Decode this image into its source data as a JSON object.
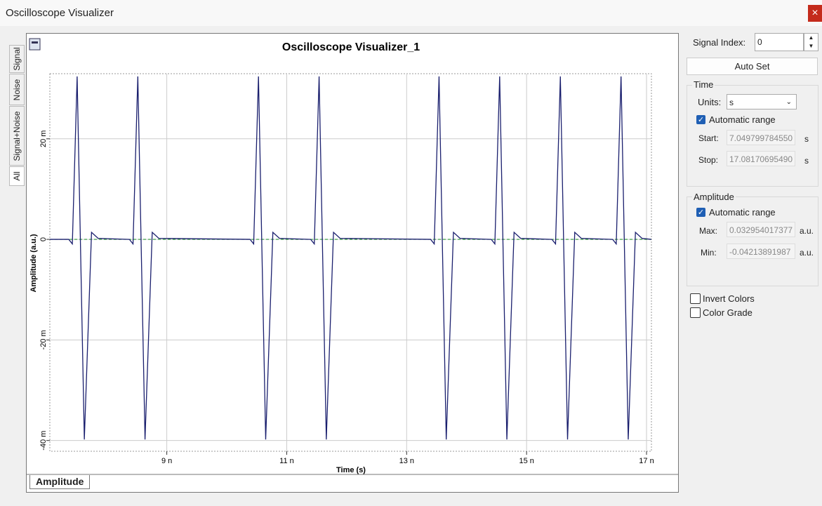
{
  "window": {
    "title": "Oscilloscope Visualizer",
    "close": "×"
  },
  "side_tabs": [
    "Signal",
    "Noise",
    "Signal+Noise",
    "All"
  ],
  "bottom_tab": "Amplitude",
  "chart_data": {
    "type": "line",
    "title": "Oscilloscope Visualizer_1",
    "x_label": "Time (s)",
    "y_label": "Amplitude (a.u.)",
    "xlim": [
      7.0498e-09,
      1.70817e-08
    ],
    "ylim": [
      -0.04214,
      0.03295
    ],
    "xticks": [
      {
        "value": 9e-09,
        "label": "9 n"
      },
      {
        "value": 1.1e-08,
        "label": "11 n"
      },
      {
        "value": 1.3e-08,
        "label": "13 n"
      },
      {
        "value": 1.5e-08,
        "label": "15 n"
      },
      {
        "value": 1.7e-08,
        "label": "17 n"
      }
    ],
    "yticks": [
      {
        "value": -0.04,
        "label": "-40 m"
      },
      {
        "value": -0.02,
        "label": "-20 m"
      },
      0,
      {
        "value": 0.02,
        "label": "20 m"
      }
    ],
    "grid": true,
    "series": [
      {
        "color": "#1a1f6e",
        "x": [
          7.05e-09,
          7.365e-09,
          7.425e-09,
          7.505e-09,
          7.625e-09,
          7.745e-09,
          7.855e-09,
          8.377e-09,
          8.437e-09,
          8.517e-09,
          8.637e-09,
          8.757e-09,
          8.867e-09,
          1.0389e-08,
          1.0449e-08,
          1.0529e-08,
          1.0649e-08,
          1.0769e-08,
          1.0879e-08,
          1.14e-08,
          1.146e-08,
          1.154e-08,
          1.166e-08,
          1.178e-08,
          1.189e-08,
          1.34e-08,
          1.346e-08,
          1.354e-08,
          1.366e-08,
          1.378e-08,
          1.389e-08,
          1.4411e-08,
          1.4471e-08,
          1.4551e-08,
          1.4671e-08,
          1.4791e-08,
          1.4901e-08,
          1.5423e-08,
          1.5483e-08,
          1.5563e-08,
          1.5683e-08,
          1.5803e-08,
          1.5913e-08,
          1.6435e-08,
          1.6495e-08,
          1.6575e-08,
          1.6695e-08,
          1.6815e-08,
          1.6925e-08,
          1.708e-08
        ],
        "values": [
          0,
          0,
          -0.0009,
          0.0324,
          -0.0398,
          0.0014,
          0.0002,
          0,
          -0.0009,
          0.0324,
          -0.0398,
          0.0014,
          0.0002,
          0,
          -0.0009,
          0.0324,
          -0.0398,
          0.0014,
          0.0002,
          0,
          -0.0009,
          0.0324,
          -0.0398,
          0.0014,
          0.0002,
          0,
          -0.0009,
          0.0324,
          -0.0398,
          0.0014,
          0.0002,
          0,
          -0.0009,
          0.0324,
          -0.0398,
          0.0014,
          0.0002,
          0,
          -0.0009,
          0.0324,
          -0.0398,
          0.0014,
          0.0002,
          0,
          -0.0009,
          0.0324,
          -0.0398,
          0.0014,
          0.0002,
          0
        ]
      },
      {
        "color": "#2e9a3a",
        "x": [
          7.05e-09,
          1.708e-08
        ],
        "values": [
          0,
          0
        ]
      }
    ]
  },
  "panel": {
    "signal_index_label": "Signal Index:",
    "signal_index": "0",
    "auto_set": "Auto Set",
    "time": {
      "title": "Time",
      "units_label": "Units:",
      "units": "s",
      "auto": "Automatic range",
      "start_label": "Start:",
      "start": "7.049799784550",
      "start_unit": "s",
      "stop_label": "Stop:",
      "stop": "17.08170695490",
      "stop_unit": "s"
    },
    "amplitude": {
      "title": "Amplitude",
      "auto": "Automatic range",
      "max_label": "Max:",
      "max": "0.032954017377",
      "max_unit": "a.u.",
      "min_label": "Min:",
      "min": "-0.04213891987",
      "min_unit": "a.u."
    },
    "invert": "Invert Colors",
    "color_grade": "Color Grade"
  }
}
